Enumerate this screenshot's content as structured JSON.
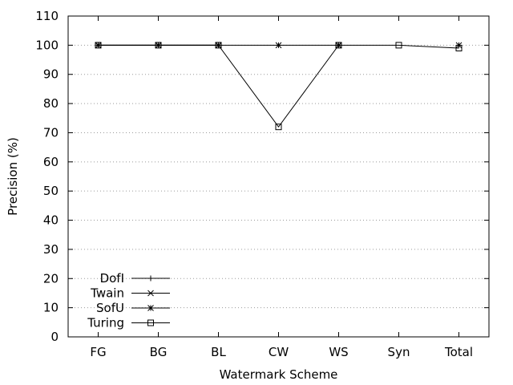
{
  "chart_data": {
    "type": "line",
    "title": "",
    "xlabel": "Watermark Scheme",
    "ylabel": "Precision (%)",
    "ylim": [
      0,
      110
    ],
    "yticks": [
      0,
      10,
      20,
      30,
      40,
      50,
      60,
      70,
      80,
      90,
      100,
      110
    ],
    "categories": [
      "FG",
      "BG",
      "BL",
      "CW",
      "WS",
      "Syn",
      "Total"
    ],
    "grid": "horizontal dotted",
    "legend_position": "bottom-left",
    "series": [
      {
        "name": "DofI",
        "marker": "plus",
        "values": [
          100,
          100,
          100,
          null,
          100,
          null,
          null
        ]
      },
      {
        "name": "Twain",
        "marker": "cross",
        "values": [
          100,
          100,
          100,
          null,
          100,
          null,
          null
        ]
      },
      {
        "name": "SofU",
        "marker": "star",
        "values": [
          100,
          100,
          100,
          100,
          100,
          null,
          100
        ]
      },
      {
        "name": "Turing",
        "marker": "square",
        "values": [
          100,
          100,
          100,
          72,
          100,
          100,
          99
        ]
      }
    ]
  }
}
